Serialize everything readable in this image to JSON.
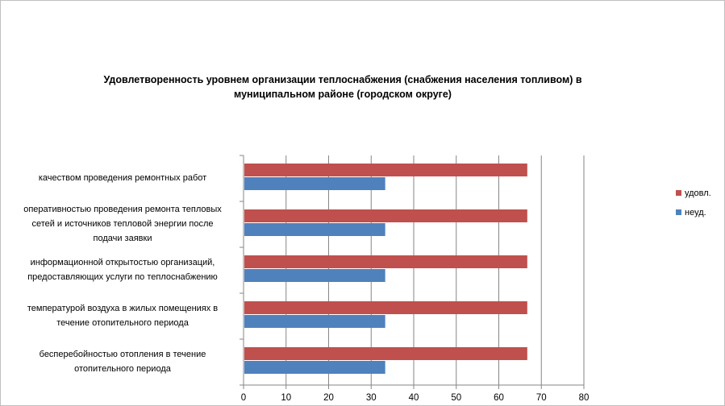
{
  "chart_data": {
    "type": "bar",
    "orientation": "horizontal",
    "title": "Удовлетворенность уровнем организации теплоснабжения (снабжения населения топливом) в муниципальном районе (городском округе)",
    "categories": [
      [
        "качеством  проведения  ремонтных  работ"
      ],
      [
        "оперативностью  проведения  ремонта тепловых",
        "сетей и источников тепловой энергии после",
        "подачи заявки"
      ],
      [
        "информационной открытостью организаций,",
        "предоставляющих услуги по теплоснабжению"
      ],
      [
        "температурой воздуха в жилых помещениях  в",
        "течение  отопительного периода"
      ],
      [
        "бесперебойностью  отопления в течение",
        "отопительного периода"
      ]
    ],
    "series": [
      {
        "name": "удовл.",
        "color": "#c0504d",
        "values": [
          66.7,
          66.7,
          66.7,
          66.7,
          66.7
        ]
      },
      {
        "name": "неуд.",
        "color": "#4f81bd",
        "values": [
          33.3,
          33.3,
          33.3,
          33.3,
          33.3
        ]
      }
    ],
    "xlim": [
      0,
      80
    ],
    "xticks": [
      0,
      10,
      20,
      30,
      40,
      50,
      60,
      70,
      80
    ],
    "grid": true,
    "legend_position": "right"
  }
}
